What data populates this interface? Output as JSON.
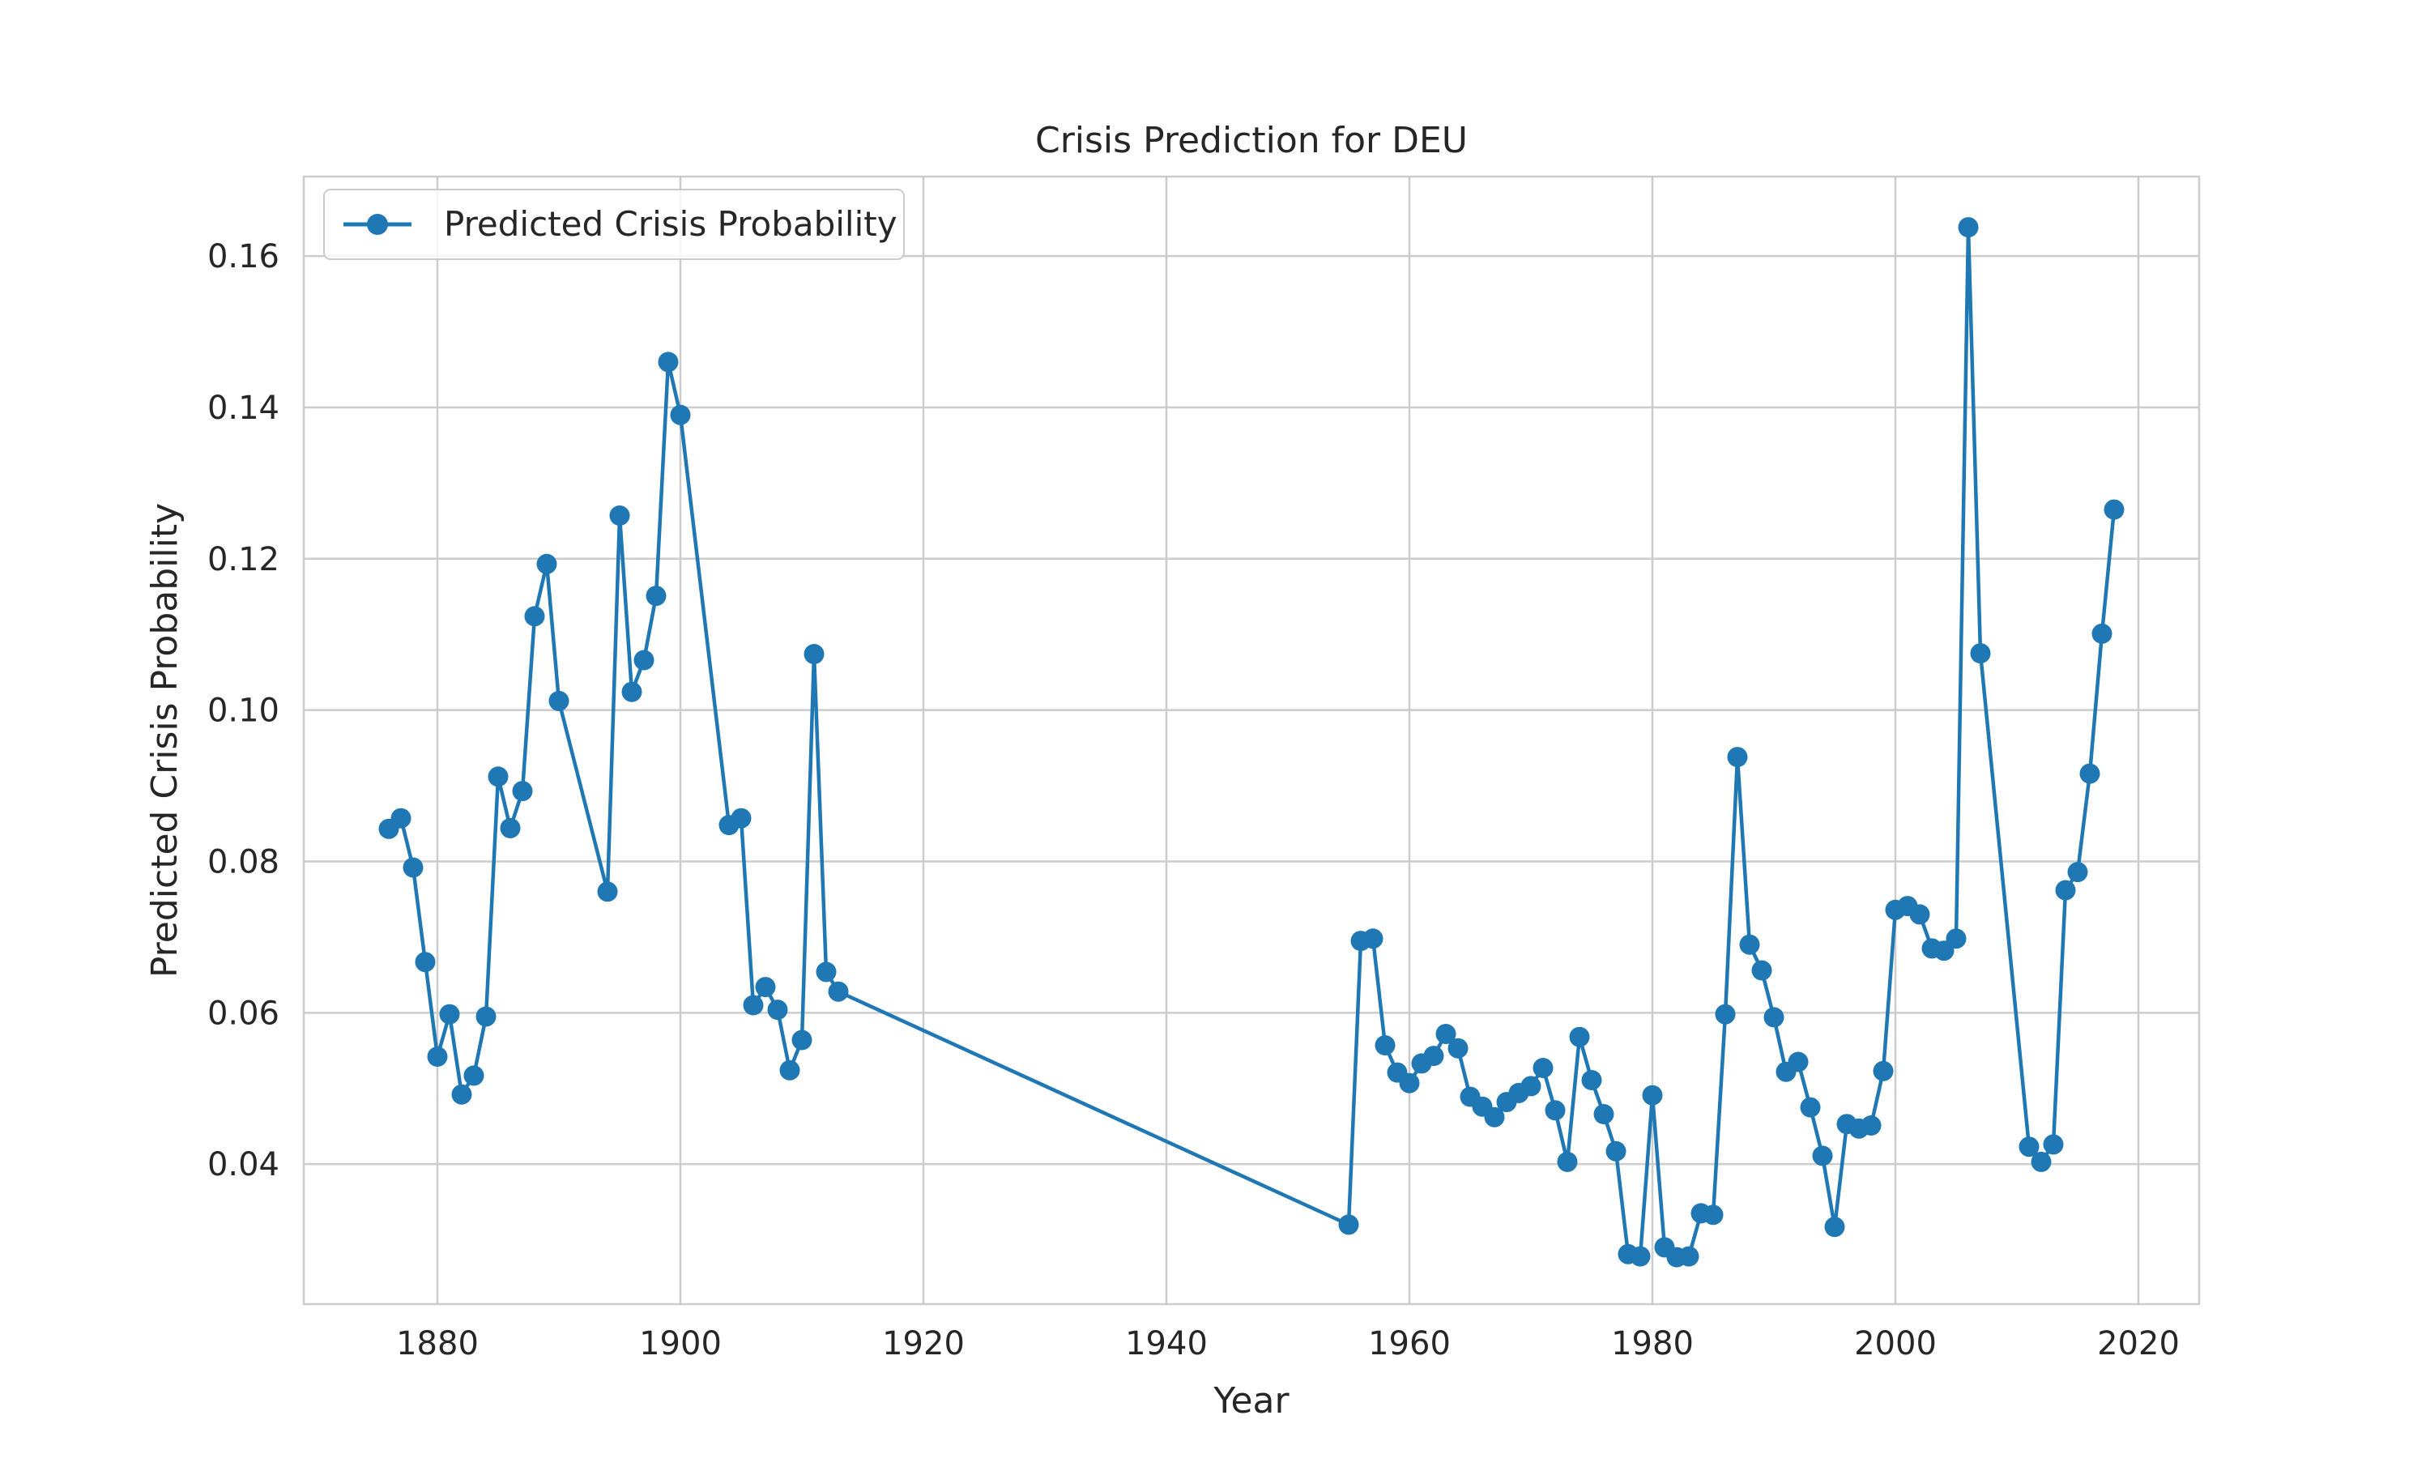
{
  "chart_data": {
    "type": "line",
    "title": "Crisis Prediction for DEU",
    "xlabel": "Year",
    "ylabel": "Predicted Crisis Probability",
    "xlim": [
      1869,
      2025
    ],
    "ylim": [
      0.0215,
      0.1705
    ],
    "xticks": [
      1880,
      1900,
      1920,
      1940,
      1960,
      1980,
      2000,
      2020
    ],
    "yticks": [
      0.04,
      0.06,
      0.08,
      0.1,
      0.12,
      0.14,
      0.16
    ],
    "ytick_labels": [
      "0.04",
      "0.06",
      "0.08",
      "0.10",
      "0.12",
      "0.14",
      "0.16"
    ],
    "grid": true,
    "legend_position": "top-left",
    "color": "#1f77b4",
    "series": [
      {
        "name": "Predicted Crisis Probability",
        "marker": "circle",
        "points": [
          [
            1876,
            0.0843
          ],
          [
            1877,
            0.0857
          ],
          [
            1878,
            0.0792
          ],
          [
            1879,
            0.0667
          ],
          [
            1880,
            0.0542
          ],
          [
            1881,
            0.0598
          ],
          [
            1882,
            0.0492
          ],
          [
            1883,
            0.0517
          ],
          [
            1884,
            0.0595
          ],
          [
            1885,
            0.0912
          ],
          [
            1886,
            0.0844
          ],
          [
            1887,
            0.0893
          ],
          [
            1888,
            0.1124
          ],
          [
            1889,
            0.1193
          ],
          [
            1890,
            0.1012
          ],
          [
            1894,
            0.076
          ],
          [
            1895,
            0.1257
          ],
          [
            1896,
            0.1024
          ],
          [
            1897,
            0.1066
          ],
          [
            1898,
            0.1151
          ],
          [
            1899,
            0.146
          ],
          [
            1900,
            0.139
          ],
          [
            1904,
            0.0848
          ],
          [
            1905,
            0.0857
          ],
          [
            1906,
            0.061
          ],
          [
            1907,
            0.0634
          ],
          [
            1908,
            0.0604
          ],
          [
            1909,
            0.0524
          ],
          [
            1910,
            0.0564
          ],
          [
            1911,
            0.1074
          ],
          [
            1912,
            0.0654
          ],
          [
            1913,
            0.0628
          ],
          [
            1955,
            0.032
          ],
          [
            1956,
            0.0695
          ],
          [
            1957,
            0.0698
          ],
          [
            1958,
            0.0557
          ],
          [
            1959,
            0.0521
          ],
          [
            1960,
            0.0507
          ],
          [
            1961,
            0.0533
          ],
          [
            1962,
            0.0543
          ],
          [
            1963,
            0.0572
          ],
          [
            1964,
            0.0553
          ],
          [
            1965,
            0.0489
          ],
          [
            1966,
            0.0476
          ],
          [
            1967,
            0.0462
          ],
          [
            1968,
            0.0482
          ],
          [
            1969,
            0.0494
          ],
          [
            1970,
            0.0503
          ],
          [
            1971,
            0.0527
          ],
          [
            1972,
            0.0471
          ],
          [
            1973,
            0.0403
          ],
          [
            1974,
            0.0568
          ],
          [
            1975,
            0.0511
          ],
          [
            1976,
            0.0466
          ],
          [
            1977,
            0.0417
          ],
          [
            1978,
            0.0281
          ],
          [
            1979,
            0.0278
          ],
          [
            1980,
            0.0491
          ],
          [
            1981,
            0.029
          ],
          [
            1982,
            0.0277
          ],
          [
            1983,
            0.0278
          ],
          [
            1984,
            0.0335
          ],
          [
            1985,
            0.0333
          ],
          [
            1986,
            0.0598
          ],
          [
            1987,
            0.0938
          ],
          [
            1988,
            0.069
          ],
          [
            1989,
            0.0656
          ],
          [
            1990,
            0.0594
          ],
          [
            1991,
            0.0522
          ],
          [
            1992,
            0.0535
          ],
          [
            1993,
            0.0475
          ],
          [
            1994,
            0.0411
          ],
          [
            1995,
            0.0317
          ],
          [
            1996,
            0.0453
          ],
          [
            1997,
            0.0447
          ],
          [
            1998,
            0.0451
          ],
          [
            1999,
            0.0523
          ],
          [
            2000,
            0.0736
          ],
          [
            2001,
            0.0741
          ],
          [
            2002,
            0.073
          ],
          [
            2003,
            0.0685
          ],
          [
            2004,
            0.0682
          ],
          [
            2005,
            0.0698
          ],
          [
            2006,
            0.1638
          ],
          [
            2007,
            0.1075
          ],
          [
            2011,
            0.0423
          ],
          [
            2012,
            0.0403
          ],
          [
            2013,
            0.0426
          ],
          [
            2014,
            0.0762
          ],
          [
            2015,
            0.0786
          ],
          [
            2016,
            0.0916
          ],
          [
            2017,
            0.1101
          ],
          [
            2018,
            0.1265
          ]
        ]
      }
    ]
  }
}
